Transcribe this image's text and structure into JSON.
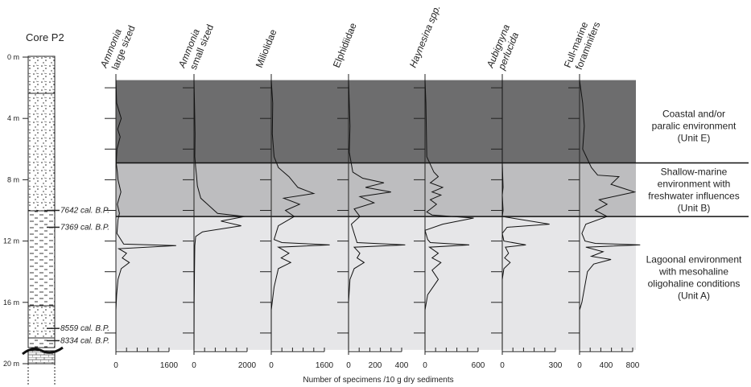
{
  "chart_data": {
    "type": "line",
    "core_title": "Core P2",
    "depth_ticks": [
      "0 m",
      "4 m",
      "8 m",
      "12 m",
      "16 m",
      "20 m"
    ],
    "depth_range_m": [
      0,
      20
    ],
    "dates": [
      {
        "label": "7642 cal. B.P.",
        "depth_m": 10.0
      },
      {
        "label": "7369 cal. B.P.",
        "depth_m": 11.1
      },
      {
        "label": "8559 cal. B.P.",
        "depth_m": 17.7
      },
      {
        "label": "8334 cal. B.P.",
        "depth_m": 18.5
      }
    ],
    "units": [
      {
        "name": "Unit E",
        "lines": [
          "Coastal and/or",
          "paralic environment",
          "(Unit E)"
        ],
        "top_m": 1.5,
        "bottom_m": 6.9,
        "color": "#6d6d6e"
      },
      {
        "name": "Unit B",
        "lines": [
          "Shallow-marine",
          "environment with",
          "freshwater influences",
          "(Unit B)"
        ],
        "top_m": 6.9,
        "bottom_m": 10.4,
        "color": "#bdbdbf"
      },
      {
        "name": "Unit A",
        "lines": [
          "Lagoonal environment",
          "with mesohaline",
          "oligohaline conditions",
          "(Unit A)"
        ],
        "top_m": 10.4,
        "bottom_m": 19.1,
        "color": "#e6e6e8"
      }
    ],
    "xlabel": "Number of specimens /10 g dry sediments",
    "series": [
      {
        "title_lines": [
          "Ammonia",
          "large sized"
        ],
        "italic_first": true,
        "italic_all": false,
        "tick_labels": [
          "0",
          "1600"
        ],
        "xlim": [
          0,
          2000
        ],
        "points": [
          [
            0,
            1.5
          ],
          [
            20,
            3
          ],
          [
            150,
            4
          ],
          [
            50,
            4.7
          ],
          [
            120,
            5.2
          ],
          [
            30,
            6
          ],
          [
            10,
            6.9
          ],
          [
            40,
            7.5
          ],
          [
            60,
            8
          ],
          [
            140,
            8.8
          ],
          [
            40,
            9.6
          ],
          [
            100,
            10.2
          ],
          [
            60,
            10.6
          ],
          [
            30,
            11.5
          ],
          [
            220,
            12.2
          ],
          [
            1700,
            12.3
          ],
          [
            80,
            12.5
          ],
          [
            300,
            12.8
          ],
          [
            180,
            13.1
          ],
          [
            380,
            13.4
          ],
          [
            150,
            13.8
          ],
          [
            60,
            14.5
          ],
          [
            20,
            15.5
          ],
          [
            0,
            16.5
          ],
          [
            0,
            19.1
          ]
        ]
      },
      {
        "title_lines": [
          "Ammonia",
          "small sized"
        ],
        "italic_first": true,
        "italic_all": false,
        "tick_labels": [
          "0",
          "2000"
        ],
        "xlim": [
          0,
          4200
        ],
        "points": [
          [
            0,
            1.5
          ],
          [
            30,
            3
          ],
          [
            60,
            5
          ],
          [
            50,
            6.5
          ],
          [
            100,
            7.2
          ],
          [
            150,
            7.7
          ],
          [
            200,
            8.4
          ],
          [
            400,
            9.2
          ],
          [
            1400,
            10.2
          ],
          [
            3000,
            10.4
          ],
          [
            1600,
            10.7
          ],
          [
            2800,
            11
          ],
          [
            500,
            11.4
          ],
          [
            100,
            11.7
          ],
          [
            50,
            12.3
          ],
          [
            30,
            14
          ],
          [
            10,
            16
          ],
          [
            0,
            19.1
          ]
        ]
      },
      {
        "title_lines": [
          "Miliolidae"
        ],
        "italic_first": false,
        "italic_all": false,
        "tick_labels": [
          "0",
          "1600"
        ],
        "xlim": [
          0,
          2000
        ],
        "points": [
          [
            0,
            1.5
          ],
          [
            40,
            3
          ],
          [
            30,
            5
          ],
          [
            80,
            6.5
          ],
          [
            200,
            7.2
          ],
          [
            500,
            7.8
          ],
          [
            750,
            8.5
          ],
          [
            1200,
            8.9
          ],
          [
            350,
            9.2
          ],
          [
            800,
            9.6
          ],
          [
            400,
            10
          ],
          [
            650,
            10.4
          ],
          [
            200,
            11
          ],
          [
            80,
            11.9
          ],
          [
            300,
            12.1
          ],
          [
            1650,
            12.25
          ],
          [
            200,
            12.4
          ],
          [
            500,
            12.8
          ],
          [
            280,
            13.1
          ],
          [
            550,
            13.4
          ],
          [
            200,
            13.8
          ],
          [
            80,
            15
          ],
          [
            0,
            16.5
          ],
          [
            0,
            19.1
          ]
        ]
      },
      {
        "title_lines": [
          "Elphidiidae"
        ],
        "italic_first": false,
        "italic_all": false,
        "tick_labels": [
          "0",
          "200",
          "400"
        ],
        "xlim": [
          0,
          500
        ],
        "points": [
          [
            0,
            1.5
          ],
          [
            5,
            3
          ],
          [
            10,
            4.5
          ],
          [
            5,
            6.2
          ],
          [
            30,
            7.5
          ],
          [
            100,
            7.9
          ],
          [
            250,
            8.2
          ],
          [
            120,
            8.5
          ],
          [
            300,
            8.8
          ],
          [
            80,
            9.1
          ],
          [
            180,
            9.5
          ],
          [
            40,
            9.9
          ],
          [
            80,
            10.4
          ],
          [
            20,
            10.9
          ],
          [
            40,
            11.5
          ],
          [
            60,
            12.1
          ],
          [
            400,
            12.25
          ],
          [
            40,
            12.4
          ],
          [
            80,
            12.8
          ],
          [
            60,
            13.1
          ],
          [
            110,
            13.4
          ],
          [
            40,
            13.8
          ],
          [
            10,
            14.5
          ],
          [
            0,
            16
          ],
          [
            0,
            19.1
          ]
        ]
      },
      {
        "title_lines": [
          "Haynesina spp."
        ],
        "italic_first": true,
        "italic_all": false,
        "tick_labels": [
          "0",
          "600"
        ],
        "xlim": [
          0,
          800
        ],
        "points": [
          [
            0,
            1.5
          ],
          [
            10,
            3
          ],
          [
            20,
            6.5
          ],
          [
            100,
            7.5
          ],
          [
            150,
            7.8
          ],
          [
            60,
            8.2
          ],
          [
            200,
            8.5
          ],
          [
            80,
            8.8
          ],
          [
            180,
            9
          ],
          [
            60,
            9.3
          ],
          [
            130,
            9.6
          ],
          [
            20,
            10.1
          ],
          [
            80,
            10.3
          ],
          [
            550,
            10.5
          ],
          [
            200,
            10.9
          ],
          [
            0,
            11.3
          ],
          [
            30,
            11.9
          ],
          [
            60,
            12.1
          ],
          [
            500,
            12.25
          ],
          [
            50,
            12.4
          ],
          [
            150,
            12.8
          ],
          [
            80,
            13.1
          ],
          [
            180,
            13.4
          ],
          [
            80,
            13.9
          ],
          [
            150,
            14.5
          ],
          [
            30,
            15.5
          ],
          [
            0,
            16.5
          ],
          [
            0,
            19.1
          ]
        ]
      },
      {
        "title_lines": [
          "Aubignyna",
          "perlucida"
        ],
        "italic_first": true,
        "italic_all": true,
        "tick_labels": [
          "0",
          "300"
        ],
        "xlim": [
          0,
          450
        ],
        "points": [
          [
            0,
            1.5
          ],
          [
            0,
            6.9
          ],
          [
            5,
            8.5
          ],
          [
            0,
            9
          ],
          [
            5,
            10
          ],
          [
            0,
            10.4
          ],
          [
            300,
            10.9
          ],
          [
            30,
            11.1
          ],
          [
            0,
            11.5
          ],
          [
            10,
            12
          ],
          [
            150,
            12.25
          ],
          [
            20,
            12.4
          ],
          [
            40,
            12.8
          ],
          [
            15,
            13.1
          ],
          [
            50,
            13.4
          ],
          [
            10,
            13.8
          ],
          [
            0,
            14.5
          ],
          [
            0,
            19.1
          ]
        ]
      },
      {
        "title_lines": [
          "Full-marine",
          "foraminifers"
        ],
        "italic_first": false,
        "italic_all": false,
        "tick_labels": [
          "0",
          "400",
          "800"
        ],
        "xlim": [
          0,
          900
        ],
        "points": [
          [
            0,
            1.5
          ],
          [
            40,
            3
          ],
          [
            60,
            4.5
          ],
          [
            40,
            6
          ],
          [
            150,
            7.2
          ],
          [
            230,
            7.7
          ],
          [
            500,
            7.8
          ],
          [
            400,
            8.3
          ],
          [
            700,
            8.8
          ],
          [
            250,
            9.3
          ],
          [
            350,
            9.6
          ],
          [
            200,
            10
          ],
          [
            350,
            10.4
          ],
          [
            80,
            10.9
          ],
          [
            30,
            11.5
          ],
          [
            70,
            12
          ],
          [
            200,
            12.15
          ],
          [
            770,
            12.25
          ],
          [
            80,
            12.4
          ],
          [
            300,
            12.7
          ],
          [
            150,
            13
          ],
          [
            400,
            13.2
          ],
          [
            180,
            13.5
          ],
          [
            100,
            14
          ],
          [
            30,
            16
          ],
          [
            0,
            16.5
          ],
          [
            0,
            19.1
          ]
        ]
      }
    ]
  }
}
